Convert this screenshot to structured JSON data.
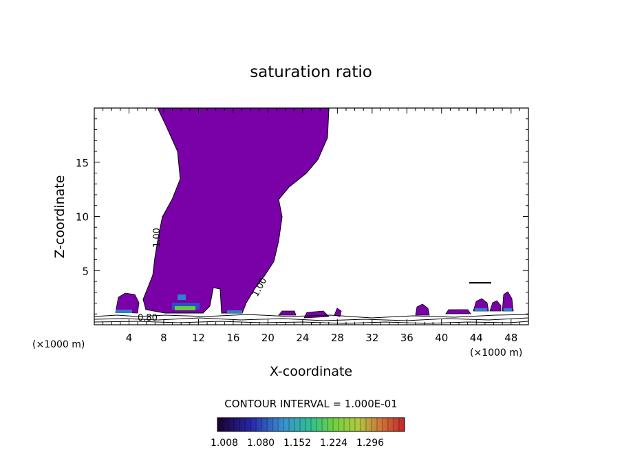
{
  "chart_data": {
    "type": "contour",
    "title": "saturation ratio",
    "xlabel": "X-coordinate",
    "ylabel": "Z-coordinate",
    "x_unit_left": "(×1000 m)",
    "x_unit_right": "(×1000 m)",
    "xlim": [
      0,
      50
    ],
    "ylim": [
      0,
      20
    ],
    "x_ticks": [
      4,
      8,
      12,
      16,
      20,
      24,
      28,
      32,
      36,
      40,
      44,
      48
    ],
    "y_ticks": [
      5,
      10,
      15
    ],
    "contour_labels": [
      "1.00",
      "1.00",
      "0.80"
    ],
    "contour_interval_text": "CONTOUR INTERVAL = 1.000E-01",
    "colorbar": {
      "ticks": [
        "1.008",
        "1.080",
        "1.152",
        "1.224",
        "1.296"
      ],
      "colors": [
        "#1a0030",
        "#2020a0",
        "#2f7fd0",
        "#30c0a0",
        "#5fd040",
        "#c0d040",
        "#e08030",
        "#c03020"
      ]
    },
    "fill_color": "#7a00a8"
  }
}
